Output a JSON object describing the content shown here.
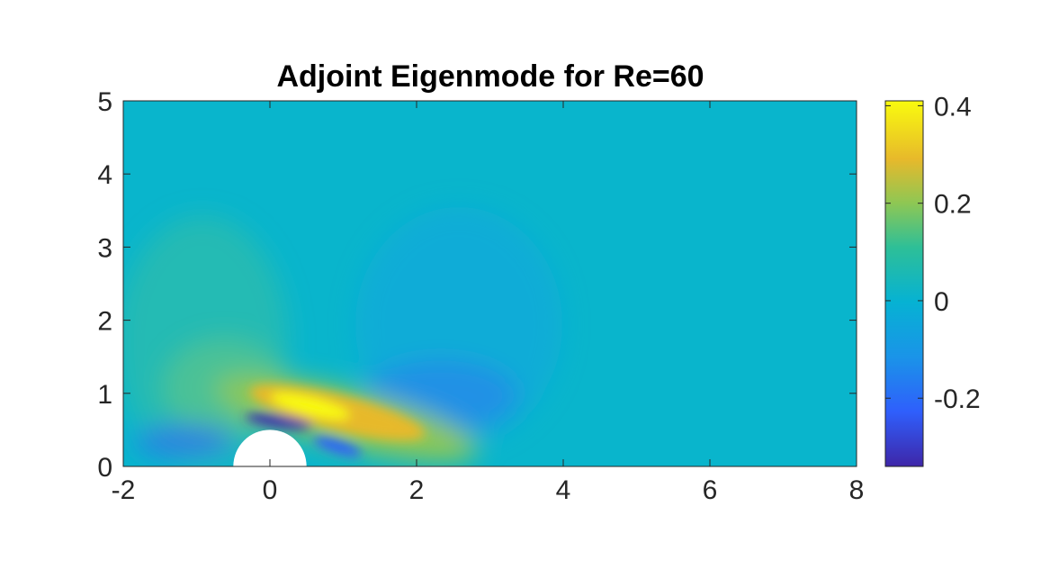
{
  "chart_data": {
    "type": "heatmap",
    "title": "Adjoint Eigenmode for Re=60",
    "xlabel": "",
    "ylabel": "",
    "xlim": [
      -2,
      8
    ],
    "ylim": [
      0,
      5
    ],
    "x_ticks": [
      -2,
      0,
      2,
      4,
      6,
      8
    ],
    "x_tick_labels": [
      "-2",
      "0",
      "2",
      "4",
      "6",
      "8"
    ],
    "y_ticks": [
      0,
      1,
      2,
      3,
      4,
      5
    ],
    "y_tick_labels": [
      "0",
      "1",
      "2",
      "3",
      "4",
      "5"
    ],
    "grid": false,
    "colormap": "parula",
    "colorbar": {
      "placement": "right",
      "clim": [
        -0.34,
        0.41
      ],
      "ticks": [
        -0.2,
        0,
        0.2,
        0.4
      ],
      "tick_labels": [
        "-0.2",
        "0",
        "0.2",
        "0.4"
      ]
    },
    "obstacle": {
      "shape": "half-circle",
      "center": [
        0,
        0
      ],
      "radius": 0.5,
      "fill": "#ffffff"
    },
    "features": [
      {
        "description": "positive lobe (yellow)",
        "center": [
          1.0,
          0.72
        ],
        "peak_value": 0.41
      },
      {
        "description": "negative band (dark blue) above cylinder",
        "center": [
          0.05,
          0.6
        ],
        "peak_value": -0.33
      },
      {
        "description": "weak positive region (light green) upstream",
        "center": [
          -0.8,
          1.6
        ],
        "peak_value": 0.06
      },
      {
        "description": "weak negative region (blue) downstream",
        "center": [
          2.3,
          1.6
        ],
        "peak_value": -0.05
      }
    ]
  }
}
